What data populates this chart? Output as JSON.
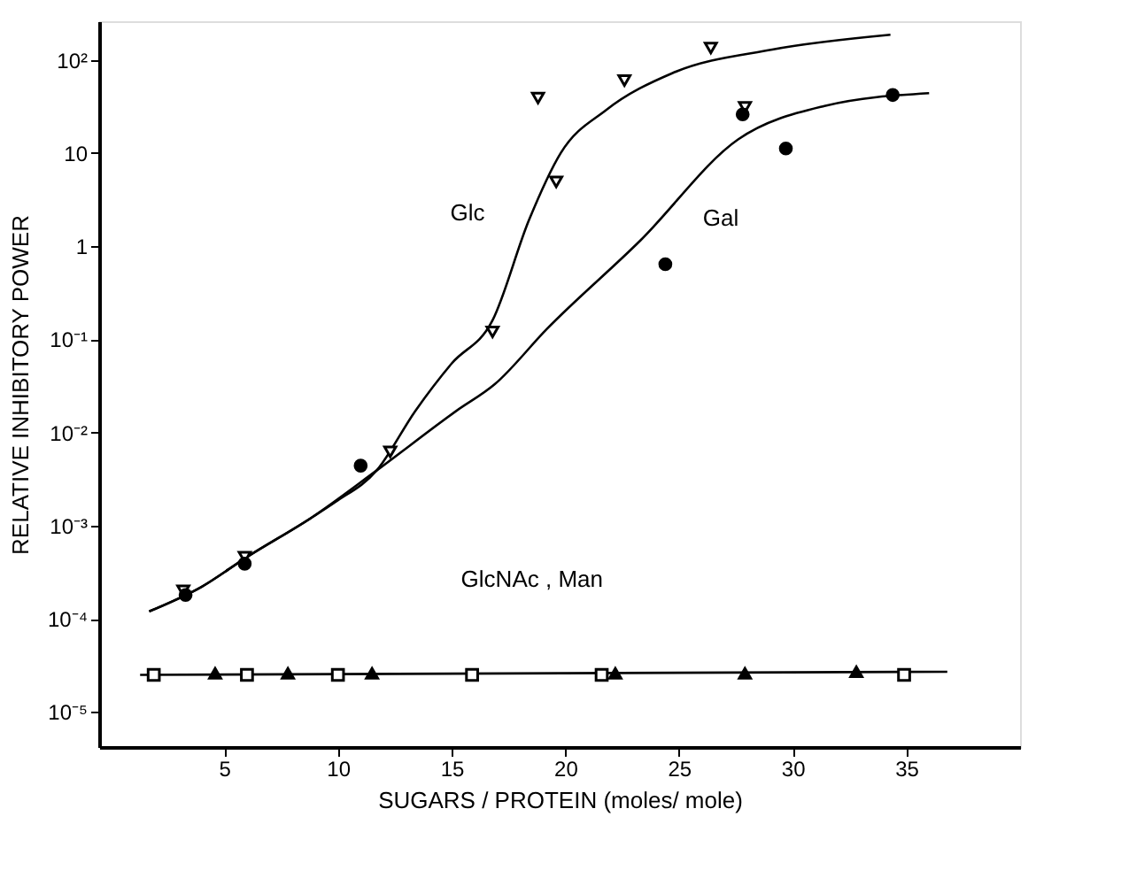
{
  "chart_data": {
    "type": "scatter",
    "xlabel": "SUGARS / PROTEIN (moles/ mole)",
    "ylabel": "RELATIVE   INHIBITORY   POWER",
    "log": "y",
    "grid": false,
    "xlim": [
      -0.5,
      40
    ],
    "xticks": [
      5,
      10,
      15,
      20,
      25,
      30,
      35
    ],
    "ylim": [
      4.2e-06,
      260
    ],
    "yticks": [
      {
        "value": 100,
        "label": "10²"
      },
      {
        "value": 10,
        "label": "10"
      },
      {
        "value": 1,
        "label": "1"
      },
      {
        "value": 0.1,
        "label": "10⁻¹"
      },
      {
        "value": 0.01,
        "label": "10⁻²"
      },
      {
        "value": 0.001,
        "label": "10⁻³"
      },
      {
        "value": 0.0001,
        "label": "10⁻⁴"
      },
      {
        "value": 1e-05,
        "label": "10⁻⁵"
      }
    ],
    "series": [
      {
        "type": "line",
        "color": "#000000",
        "line_style": "solid",
        "x": [
          1.7,
          4.0,
          6.0,
          8.8,
          9.9,
          11.7,
          13.4,
          15.0,
          16.8,
          18.4,
          19.8,
          21.8,
          24.7,
          29.1,
          34.3
        ],
        "values": [
          0.00012,
          0.00022,
          0.00046,
          0.0012,
          0.0018,
          0.0039,
          0.017,
          0.055,
          0.16,
          1.9,
          10,
          29,
          72,
          129,
          186
        ]
      },
      {
        "type": "line",
        "color": "#000000",
        "line_style": "solid",
        "x": [
          1.7,
          4.0,
          6.0,
          8.8,
          11.7,
          15.2,
          16.9,
          19.2,
          23.3,
          27.6,
          31.4,
          36.0
        ],
        "values": [
          0.00012,
          0.00022,
          0.00046,
          0.0012,
          0.0039,
          0.017,
          0.033,
          0.13,
          1.15,
          14,
          32,
          44
        ]
      },
      {
        "type": "line",
        "color": "#000000",
        "line_style": "solid",
        "x": [
          1.3,
          36.8
        ],
        "values": [
          2.5e-05,
          2.7e-05
        ]
      },
      {
        "color": "#000000",
        "marker": "triangle-down",
        "x": [
          3.2,
          5.9,
          12.3,
          16.8,
          18.8,
          19.6,
          22.6,
          26.4,
          27.9
        ],
        "values": [
          0.0002,
          0.00046,
          0.0062,
          0.12,
          39,
          4.9,
          60,
          134,
          31
        ]
      },
      {
        "color": "#000000",
        "marker": "circle",
        "x": [
          3.3,
          5.9,
          11.0,
          24.4,
          27.8,
          29.7,
          34.4
        ],
        "values": [
          0.00018,
          0.00039,
          0.0044,
          0.64,
          26,
          11.2,
          42
        ]
      },
      {
        "color": "#000000",
        "marker": "square",
        "x": [
          1.9,
          6.0,
          10.0,
          15.9,
          21.6,
          34.9
        ],
        "values": [
          2.5e-05,
          2.5e-05,
          2.5e-05,
          2.5e-05,
          2.5e-05,
          2.5e-05
        ]
      },
      {
        "color": "#000000",
        "marker": "triangle",
        "x": [
          4.6,
          7.8,
          11.5,
          22.2,
          27.9,
          32.8
        ],
        "values": [
          2.6e-05,
          2.6e-05,
          2.6e-05,
          2.6e-05,
          2.6e-05,
          2.7e-05
        ]
      }
    ],
    "annotations": [
      "Glc",
      "Gal",
      "GlcNAc , Man"
    ]
  }
}
